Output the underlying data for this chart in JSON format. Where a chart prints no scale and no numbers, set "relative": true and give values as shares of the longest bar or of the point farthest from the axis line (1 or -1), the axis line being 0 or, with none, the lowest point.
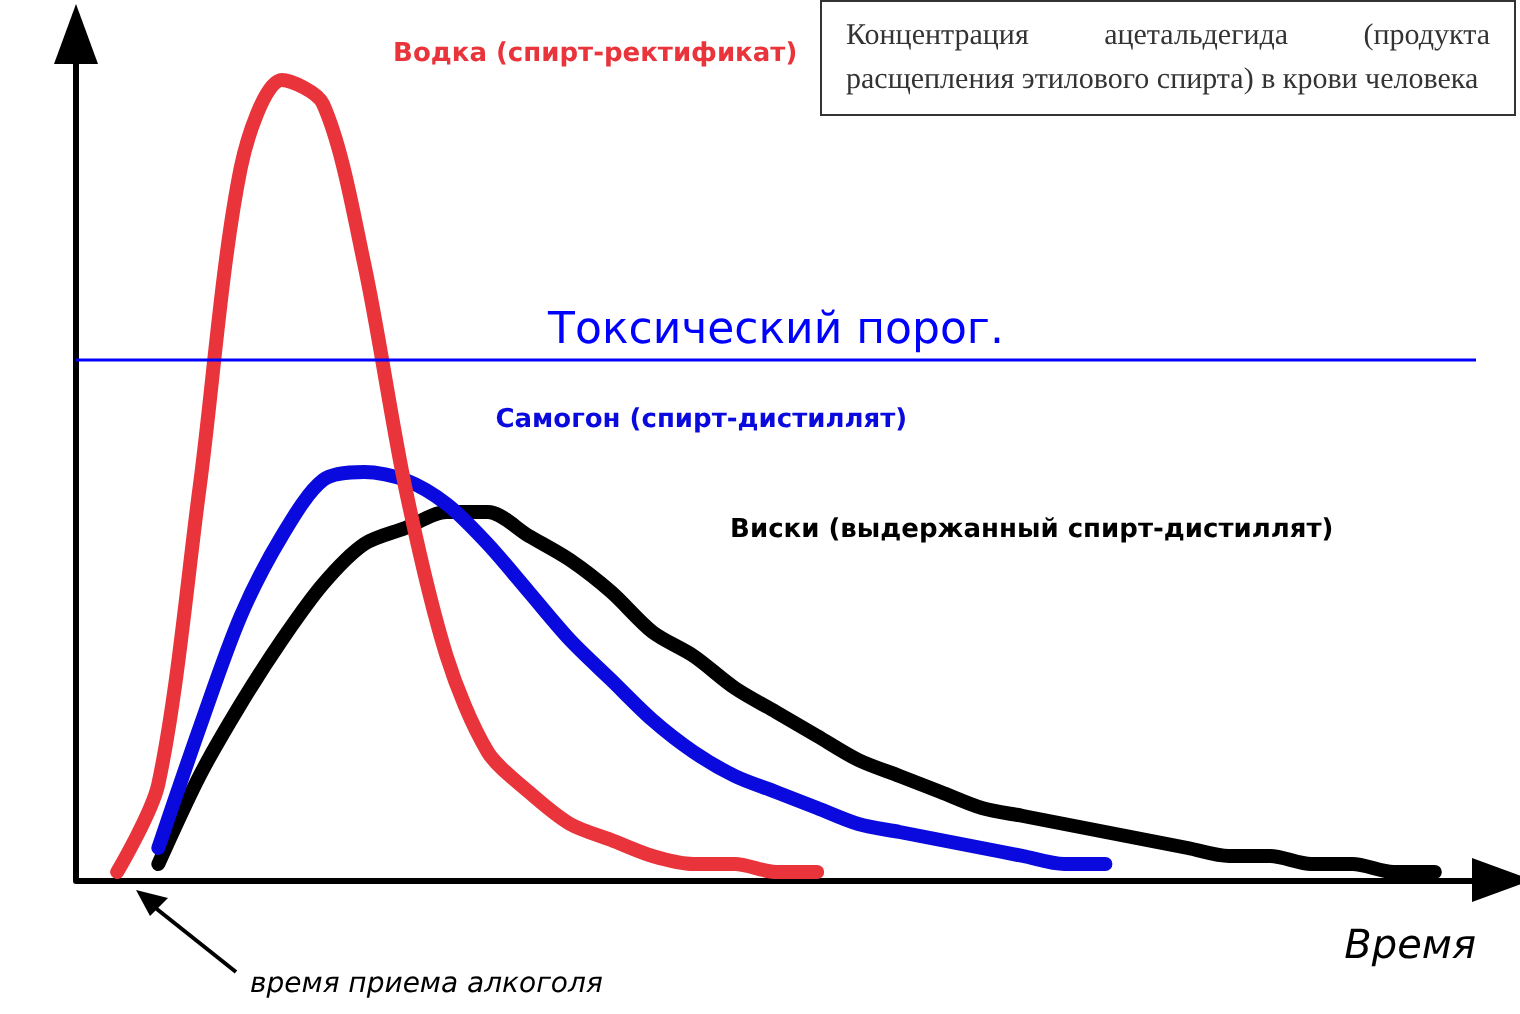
{
  "chart_data": {
    "type": "line",
    "relative": true,
    "title": "Концентрация ацетальдегида (продукта расщепления этилового спирта) в крови человека",
    "xlabel": "Время",
    "categories": [
      null,
      null,
      null,
      null,
      null,
      null,
      null,
      null,
      null,
      null,
      null,
      null,
      null,
      null,
      null,
      null,
      null,
      null,
      null,
      null,
      null,
      null,
      null,
      null,
      null,
      null,
      null,
      null,
      null,
      null,
      null,
      null,
      null,
      null,
      null
    ],
    "series": [
      {
        "name": "Водка (спирт-ректификат)",
        "color": "#e8343a",
        "values": [
          null,
          0.01,
          0.12,
          0.49,
          0.89,
          1.0,
          0.97,
          0.77,
          0.49,
          0.28,
          0.16,
          0.11,
          0.07,
          0.05,
          0.03,
          0.02,
          0.02,
          0.01,
          0.01,
          null,
          null,
          null,
          null,
          null,
          null,
          null,
          null,
          null,
          null,
          null,
          null,
          null,
          null,
          null,
          null
        ]
      },
      {
        "name": "Самогон (спирт-дистиллят)",
        "color": "#0a0adf",
        "values": [
          null,
          null,
          0.04,
          0.19,
          0.33,
          0.43,
          0.5,
          0.51,
          0.5,
          0.47,
          0.42,
          0.36,
          0.3,
          0.25,
          0.2,
          0.16,
          0.13,
          0.11,
          0.09,
          0.07,
          0.06,
          0.05,
          0.04,
          0.03,
          0.02,
          0.02,
          null,
          null,
          null,
          null,
          null,
          null,
          null,
          null,
          null
        ]
      },
      {
        "name": "Виски (выдержанный спирт-дистиллят)",
        "color": "#000000",
        "values": [
          null,
          null,
          0.02,
          0.13,
          0.22,
          0.3,
          0.37,
          0.42,
          0.44,
          0.46,
          0.46,
          0.43,
          0.4,
          0.36,
          0.31,
          0.28,
          0.24,
          0.21,
          0.18,
          0.15,
          0.13,
          0.11,
          0.09,
          0.08,
          0.07,
          0.06,
          0.05,
          0.04,
          0.03,
          0.03,
          0.02,
          0.02,
          0.01,
          0.01,
          null
        ]
      }
    ],
    "ref_lines": [
      {
        "axis": "y",
        "value": 0.65,
        "label": "Токсический порог.",
        "color": "#0000ff"
      }
    ],
    "annotations": [
      "время приема алкоголя"
    ],
    "legend": false,
    "grid": false,
    "marker": "none",
    "line_style": "solid"
  }
}
